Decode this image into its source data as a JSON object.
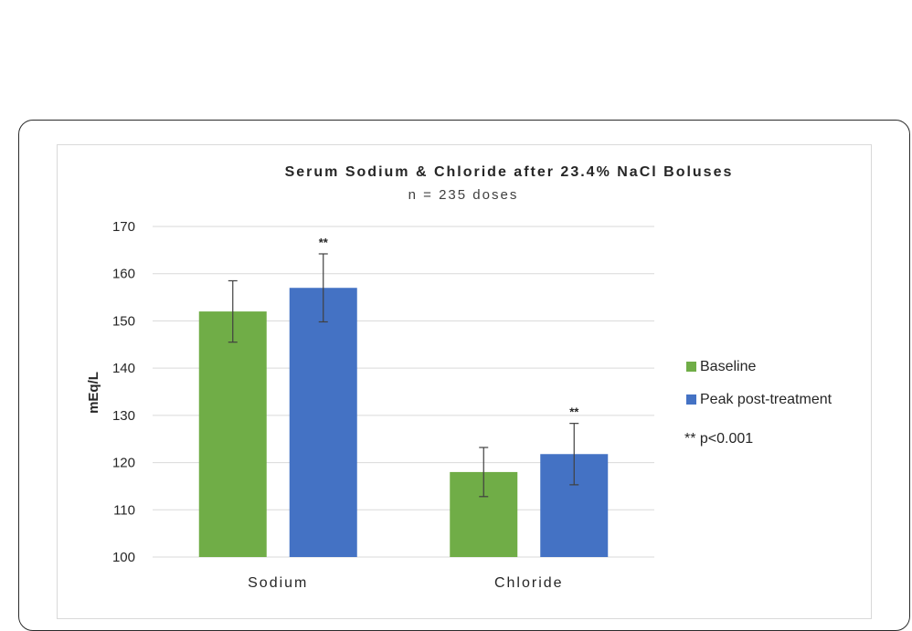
{
  "chart_data": {
    "type": "bar",
    "title": "Serum Sodium & Chloride after 23.4% NaCl Boluses",
    "subtitle": "n = 235 doses",
    "ylabel": "mEq/L",
    "ylim": [
      100,
      170
    ],
    "yticks": [
      "100",
      "110",
      "120",
      "130",
      "140",
      "150",
      "160",
      "170"
    ],
    "ytick_values": [
      100,
      110,
      120,
      130,
      140,
      150,
      160,
      170
    ],
    "grid": true,
    "legend_position": "right",
    "categories": [
      "Sodium",
      "Chloride"
    ],
    "series": [
      {
        "name": "Baseline",
        "color": "#70ad47",
        "values": [
          152,
          118
        ],
        "errors": [
          6.5,
          5.2
        ],
        "markers": [
          "",
          ""
        ]
      },
      {
        "name": "Peak post-treatment",
        "color": "#4472c4",
        "values": [
          157,
          121.8
        ],
        "errors": [
          7.2,
          6.5
        ],
        "markers": [
          "**",
          "**"
        ]
      }
    ],
    "legend_note": "** p<0.001"
  }
}
